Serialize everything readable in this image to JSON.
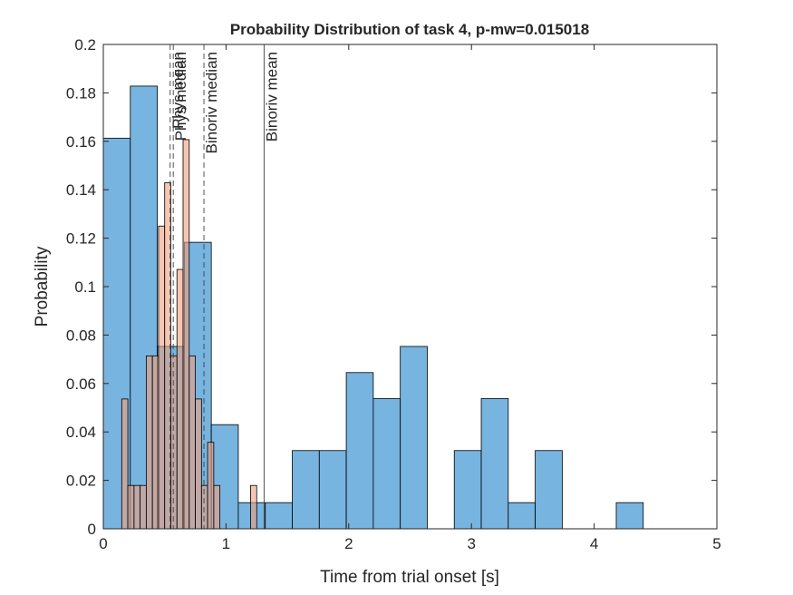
{
  "chart_data": {
    "type": "bar",
    "title": "Probability Distribution of task 4, p-mw=0.015018",
    "xlabel": "Time from trial onset [s]",
    "ylabel": "Probability",
    "xlim": [
      0,
      5
    ],
    "ylim": [
      0,
      0.2
    ],
    "xticks": [
      "0",
      "1",
      "2",
      "3",
      "4",
      "5"
    ],
    "yticks": [
      "0",
      "0.02",
      "0.04",
      "0.06",
      "0.08",
      "0.1",
      "0.12",
      "0.14",
      "0.16",
      "0.18",
      "0.2"
    ],
    "grid": false,
    "legend": "none",
    "series": [
      {
        "color": "#77b4e0",
        "edges": [
          0,
          0.22,
          0.44,
          0.66,
          0.88,
          1.1,
          1.32,
          1.54,
          1.76,
          1.98,
          2.2,
          2.42,
          2.64,
          2.86,
          3.08,
          3.3,
          3.52,
          3.74,
          3.96,
          4.18,
          4.4
        ],
        "values": [
          0.1613,
          0.1828,
          0.0753,
          0.1183,
          0.043,
          0.0108,
          0.0108,
          0.0323,
          0.0323,
          0.0645,
          0.0538,
          0.0753,
          0,
          0.0323,
          0.0538,
          0.0108,
          0.0323,
          0,
          0,
          0.0108
        ]
      },
      {
        "color": "#f0a07e",
        "edges": [
          0.15,
          0.2,
          0.25,
          0.3,
          0.35,
          0.4,
          0.45,
          0.5,
          0.55,
          0.6,
          0.65,
          0.7,
          0.75,
          0.8,
          0.85,
          0.9,
          0.95,
          1.0,
          1.05,
          1.1,
          1.15,
          1.2,
          1.25
        ],
        "values": [
          0.0536,
          0.0179,
          0.0179,
          0.0179,
          0.0714,
          0.0714,
          0.125,
          0.1429,
          0.0714,
          0.1071,
          0.1607,
          0.0714,
          0.0536,
          0.0179,
          0.0357,
          0.0179,
          0,
          0,
          0,
          0,
          0,
          0.0179
        ]
      }
    ],
    "vlines": [
      {
        "label": "Phys mean",
        "x": 0.545,
        "style": "dashed"
      },
      {
        "label": "Phys median",
        "x": 0.57,
        "style": "dashed"
      },
      {
        "label": "Binoriv median",
        "x": 0.82,
        "style": "dashed"
      },
      {
        "label": "Binoriv mean",
        "x": 1.31,
        "style": "solid"
      }
    ]
  }
}
